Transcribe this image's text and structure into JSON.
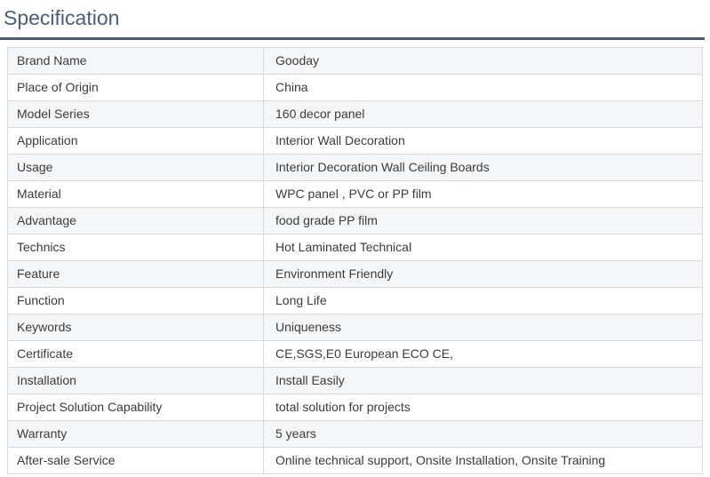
{
  "page": {
    "title": "Specification"
  },
  "colors": {
    "heading": "#4a6078",
    "rule": "#4a5a72",
    "stripe": "#f5f6f8",
    "border": "#d8dadc",
    "text": "#3b3b3b"
  },
  "table": {
    "rows": [
      {
        "label": "Brand Name",
        "value": "Gooday"
      },
      {
        "label": "Place of Origin",
        "value": "China"
      },
      {
        "label": "Model Series",
        "value": "160 decor panel"
      },
      {
        "label": "Application",
        "value": "Interior Wall Decoration"
      },
      {
        "label": "Usage",
        "value": "Interior Decoration Wall Ceiling Boards"
      },
      {
        "label": "Material",
        "value": "WPC panel , PVC or PP film"
      },
      {
        "label": "Advantage",
        "value": "food grade PP film"
      },
      {
        "label": "Technics",
        "value": "Hot Laminated Technical"
      },
      {
        "label": "Feature",
        "value": "Environment Friendly"
      },
      {
        "label": "Function",
        "value": "Long Life"
      },
      {
        "label": "Keywords",
        "value": "Uniqueness"
      },
      {
        "label": "Certificate",
        "value": "CE,SGS,E0 European ECO CE,"
      },
      {
        "label": "Installation",
        "value": "Install Easily"
      },
      {
        "label": "Project Solution Capability",
        "value": "total solution for projects"
      },
      {
        "label": "Warranty",
        "value": "5 years"
      },
      {
        "label": "After-sale Service",
        "value": "Online technical support, Onsite Installation, Onsite Training"
      }
    ]
  }
}
